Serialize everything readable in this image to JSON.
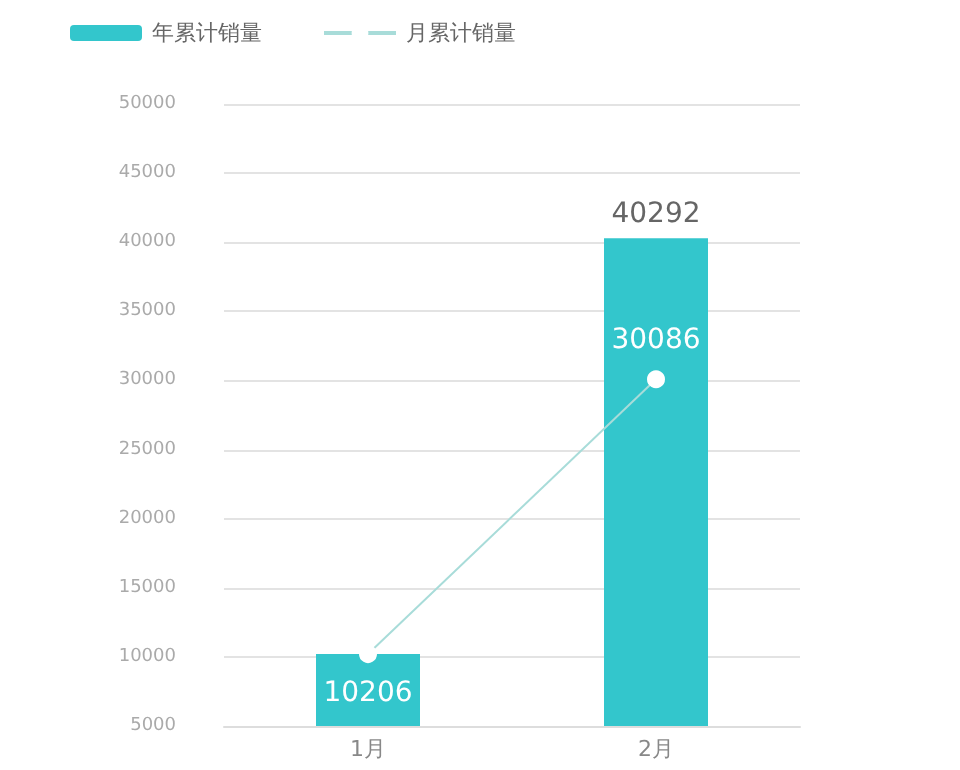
{
  "chart_data": {
    "type": "bar",
    "categories": [
      "1月",
      "2月"
    ],
    "series": [
      {
        "name": "年累计销量",
        "color": "#33c6cc",
        "values": [
          10206,
          40292
        ],
        "value_labels": [
          null,
          "40292"
        ]
      },
      {
        "name": "月累计销量",
        "type": "line",
        "color": "#a8dcd9",
        "values": [
          10206,
          30086
        ],
        "value_labels": [
          "10206",
          "30086"
        ],
        "marker": "circle"
      }
    ],
    "ylim": [
      5000,
      50000
    ],
    "yticks": [
      5000,
      10000,
      15000,
      20000,
      25000,
      30000,
      35000,
      40000,
      45000,
      50000
    ],
    "grid": "y",
    "legend": "top left"
  }
}
